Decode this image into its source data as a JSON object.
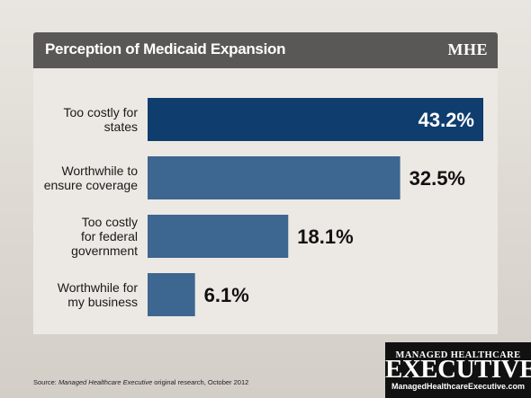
{
  "header": {
    "title": "Perception of Medicaid Expansion",
    "brand": "MHE"
  },
  "colors": {
    "bar_primary": "#0f3d6e",
    "bar_secondary": "#3d6690",
    "title_bar": "#5a5856",
    "label_text": "#1a1a1a"
  },
  "chart_data": {
    "type": "bar",
    "orientation": "horizontal",
    "title": "Perception of Medicaid Expansion",
    "categories": [
      [
        "Too costly for",
        "states"
      ],
      [
        "Worthwhile to",
        "ensure coverage"
      ],
      [
        "Too costly",
        "for federal",
        "government"
      ],
      [
        "Worthwhile for",
        "my business"
      ]
    ],
    "values": [
      43.2,
      32.5,
      18.1,
      6.1
    ],
    "value_labels": [
      "43.2%",
      "32.5%",
      "18.1%",
      "6.1%"
    ],
    "xlim": [
      0,
      43.2
    ],
    "grid": false,
    "legend": "none"
  },
  "source": {
    "prefix": "Source: ",
    "publication": "Managed Healthcare Executive",
    "suffix": " original research, October 2012"
  },
  "logo": {
    "line1": "MANAGED HEALTHCARE",
    "line2": "EXECUTIVE",
    "line3": "ManagedHealthcareExecutive.com"
  }
}
